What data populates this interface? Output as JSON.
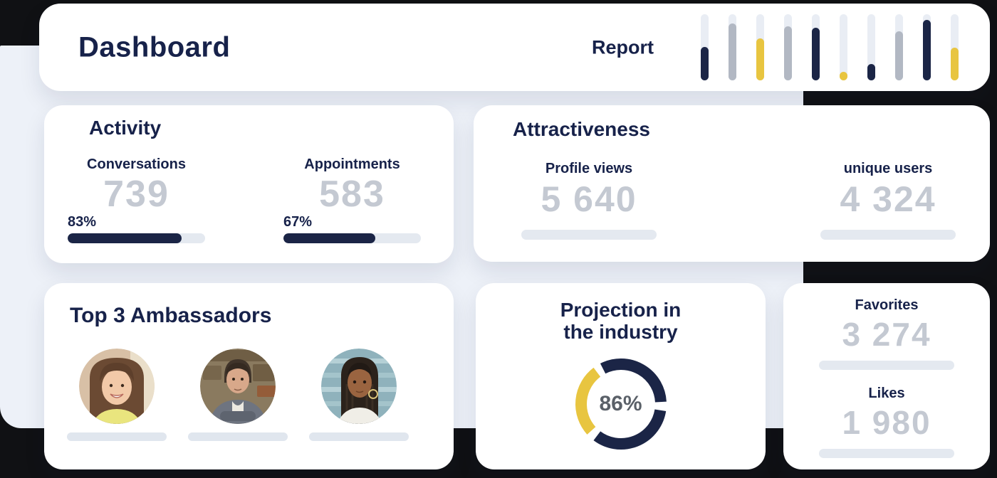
{
  "colors": {
    "navy": "#1b2546",
    "gray": "#b2b8c3",
    "yellow": "#e8c540",
    "track": "#e4e9f0",
    "number_gray": "#c4c9d2",
    "title_navy": "#17224a",
    "panel_bg": "#edf1f8",
    "donut_label_gray": "#5a6068"
  },
  "header": {
    "title": "Dashboard",
    "report_label": "Report"
  },
  "activity": {
    "title": "Activity",
    "metrics": [
      {
        "label": "Conversations",
        "value": "739",
        "percent": "83%",
        "percent_value": 83
      },
      {
        "label": "Appointments",
        "value": "583",
        "percent": "67%",
        "percent_value": 67
      }
    ]
  },
  "attractiveness": {
    "title": "Attractiveness",
    "metrics": [
      {
        "label": "Profile views",
        "value": "5 640"
      },
      {
        "label": "unique users",
        "value": "4 324"
      }
    ]
  },
  "ambassadors": {
    "title": "Top 3 Ambassadors",
    "people": [
      {
        "id": "ambassador-1",
        "alt": "smiling woman with long brown hair"
      },
      {
        "id": "ambassador-2",
        "alt": "man in grey jacket sitting indoors"
      },
      {
        "id": "ambassador-3",
        "alt": "woman with long braids and hoop earrings"
      }
    ]
  },
  "projection": {
    "title_line1": "Projection in",
    "title_line2": "the industry",
    "percent": "86%"
  },
  "engagement": {
    "items": [
      {
        "label": "Favorites",
        "value": "3 274"
      },
      {
        "label": "Likes",
        "value": "1 980"
      }
    ]
  },
  "chart_data": [
    {
      "type": "bar",
      "title": "Header report sparkline (vertical pill bars)",
      "categories": [
        "b1",
        "b2",
        "b3",
        "b4",
        "b5",
        "b6",
        "b7",
        "b8",
        "b9",
        "b10"
      ],
      "values": [
        51,
        86,
        63,
        82,
        80,
        13,
        25,
        74,
        91,
        50
      ],
      "bar_colors": [
        "navy",
        "gray",
        "yellow",
        "gray",
        "navy",
        "yellow",
        "navy",
        "gray",
        "navy",
        "yellow"
      ],
      "ylim": [
        0,
        100
      ],
      "xlabel": "",
      "ylabel": "",
      "grid": false,
      "legend": false
    },
    {
      "type": "donut",
      "title": "Projection in the industry",
      "center_label": "86%",
      "ring_radius": 56,
      "ring_width": 16,
      "segments": [
        {
          "color": "navy",
          "start_deg": 333,
          "end_deg": 447
        },
        {
          "color": "navy",
          "start_deg": 99,
          "end_deg": 217
        },
        {
          "color": "yellow",
          "start_deg": 228,
          "end_deg": 323
        }
      ]
    },
    {
      "type": "bar",
      "title": "Activity progress bars",
      "categories": [
        "Conversations",
        "Appointments"
      ],
      "values": [
        83,
        67
      ],
      "ylim": [
        0,
        100
      ]
    }
  ]
}
